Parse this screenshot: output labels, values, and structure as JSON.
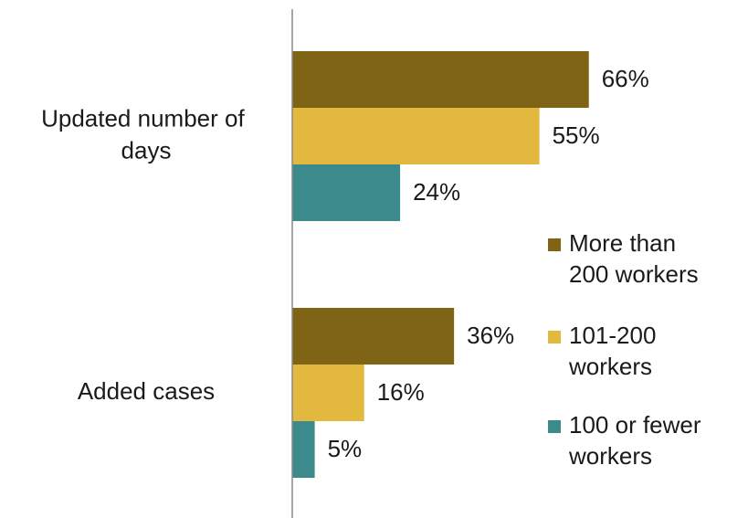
{
  "chart_data": {
    "type": "bar",
    "orientation": "horizontal",
    "categories": [
      "Updated number of days",
      "Added cases"
    ],
    "xlim": [
      0,
      100
    ],
    "series": [
      {
        "name": "More than 200 workers",
        "color": "#7f6415",
        "values": [
          66,
          36
        ],
        "value_labels": [
          "66%",
          "36%"
        ]
      },
      {
        "name": "101-200 workers",
        "color": "#e2b93e",
        "values": [
          55,
          16
        ],
        "value_labels": [
          "55%",
          "16%"
        ]
      },
      {
        "name": "100 or fewer workers",
        "color": "#3d8a8c",
        "values": [
          24,
          5
        ],
        "value_labels": [
          "24%",
          "5%"
        ]
      }
    ],
    "legend": "right"
  }
}
